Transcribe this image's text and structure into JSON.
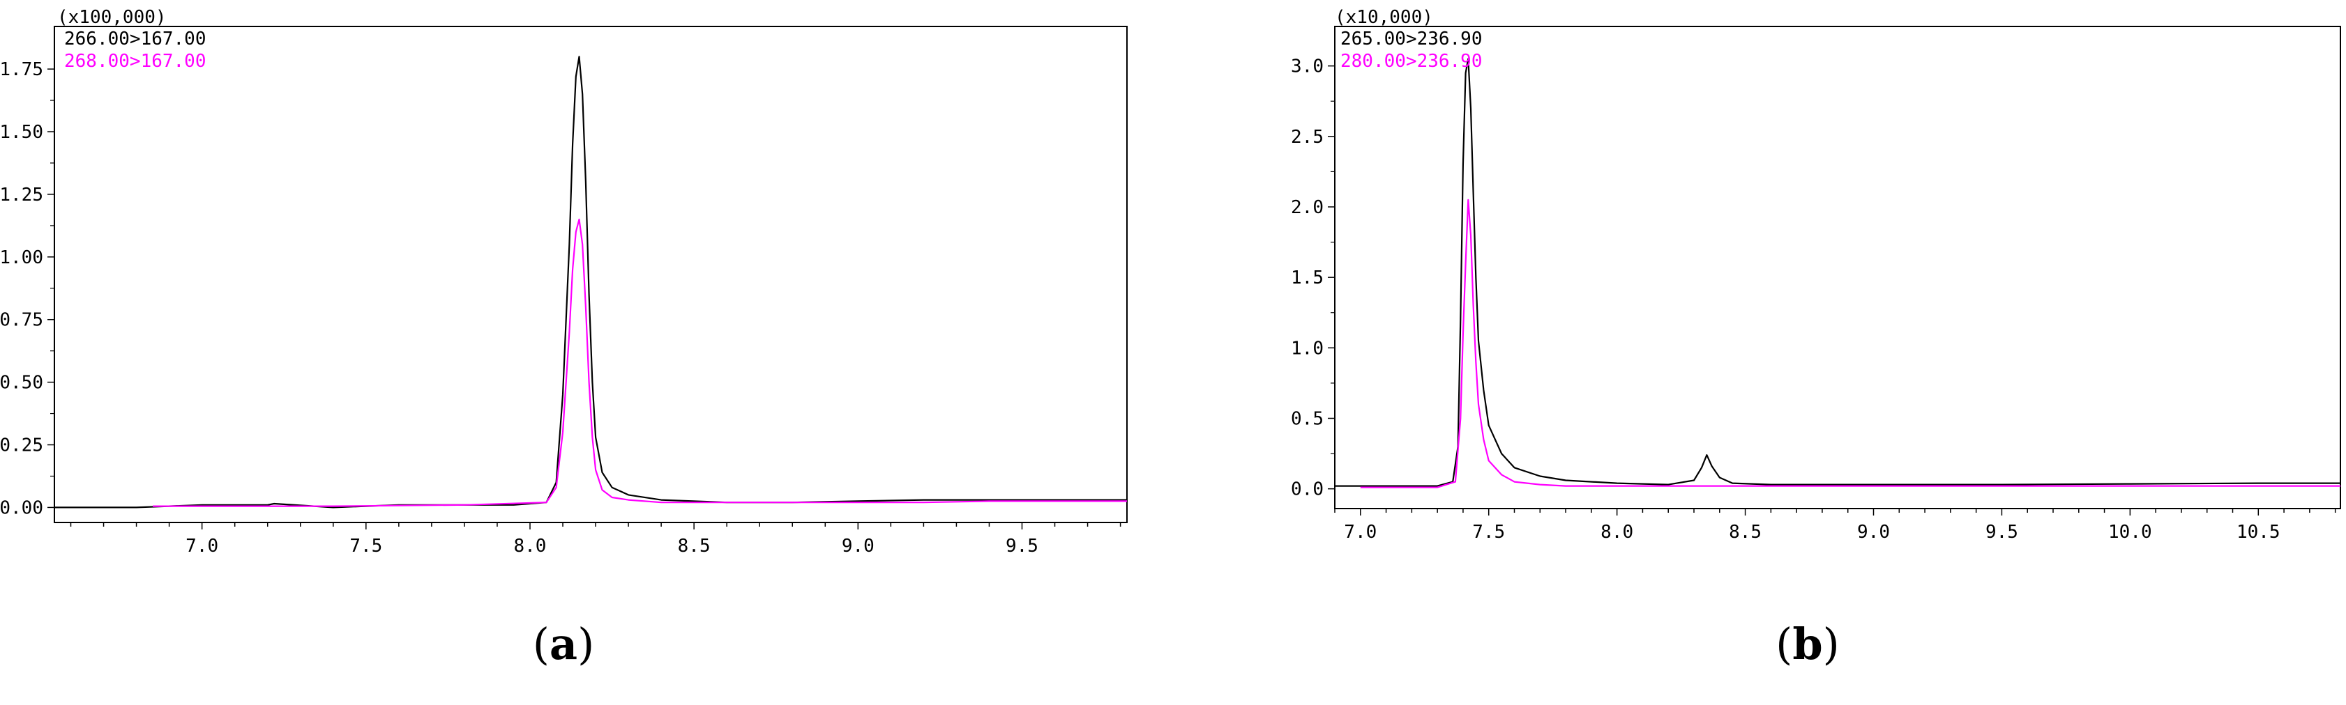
{
  "chart_data": [
    {
      "type": "line",
      "panel_label": "a",
      "y_multiplier": "(x100,000)",
      "xlim": [
        6.55,
        9.82
      ],
      "ylim": [
        -0.06,
        1.92
      ],
      "x_ticks": [
        "7.0",
        "7.5",
        "8.0",
        "8.5",
        "9.0",
        "9.5"
      ],
      "x_tick_values": [
        7.0,
        7.5,
        8.0,
        8.5,
        9.0,
        9.5
      ],
      "y_ticks": [
        "0.00",
        "0.25",
        "0.50",
        "0.75",
        "1.00",
        "1.25",
        "1.50",
        "1.75"
      ],
      "y_tick_values": [
        0.0,
        0.25,
        0.5,
        0.75,
        1.0,
        1.25,
        1.5,
        1.75
      ],
      "series": [
        {
          "name": "266.00>167.00",
          "color": "#000000",
          "x": [
            6.55,
            6.8,
            7.0,
            7.2,
            7.22,
            7.4,
            7.6,
            7.8,
            7.95,
            8.05,
            8.08,
            8.1,
            8.12,
            8.13,
            8.14,
            8.15,
            8.16,
            8.17,
            8.18,
            8.19,
            8.2,
            8.22,
            8.25,
            8.3,
            8.4,
            8.6,
            8.8,
            9.0,
            9.2,
            9.4,
            9.6,
            9.82
          ],
          "y": [
            0.0,
            0.0,
            0.01,
            0.01,
            0.015,
            0.0,
            0.01,
            0.01,
            0.01,
            0.02,
            0.1,
            0.45,
            1.05,
            1.45,
            1.72,
            1.8,
            1.65,
            1.3,
            0.85,
            0.5,
            0.28,
            0.14,
            0.08,
            0.05,
            0.03,
            0.02,
            0.02,
            0.025,
            0.03,
            0.03,
            0.03,
            0.03
          ]
        },
        {
          "name": "268.00>167.00",
          "color": "#ff00ff",
          "x": [
            6.85,
            7.0,
            7.4,
            7.8,
            8.05,
            8.08,
            8.1,
            8.12,
            8.13,
            8.14,
            8.15,
            8.16,
            8.17,
            8.18,
            8.19,
            8.2,
            8.22,
            8.25,
            8.3,
            8.4,
            8.6,
            8.8,
            9.0,
            9.2,
            9.4,
            9.6,
            9.82
          ],
          "y": [
            0.005,
            0.005,
            0.005,
            0.01,
            0.02,
            0.08,
            0.3,
            0.7,
            0.95,
            1.1,
            1.15,
            1.05,
            0.8,
            0.5,
            0.28,
            0.15,
            0.07,
            0.04,
            0.03,
            0.02,
            0.02,
            0.02,
            0.02,
            0.02,
            0.025,
            0.025,
            0.025
          ]
        }
      ]
    },
    {
      "type": "line",
      "panel_label": "b",
      "y_multiplier": "(x10,000)",
      "xlim": [
        6.9,
        10.82
      ],
      "ylim": [
        -0.14,
        3.28
      ],
      "x_ticks": [
        "7.0",
        "7.5",
        "8.0",
        "8.5",
        "9.0",
        "9.5",
        "10.0",
        "10.5"
      ],
      "x_tick_values": [
        7.0,
        7.5,
        8.0,
        8.5,
        9.0,
        9.5,
        10.0,
        10.5
      ],
      "y_ticks": [
        "0.0",
        "0.5",
        "1.0",
        "1.5",
        "2.0",
        "2.5",
        "3.0"
      ],
      "y_tick_values": [
        0.0,
        0.5,
        1.0,
        1.5,
        2.0,
        2.5,
        3.0
      ],
      "series": [
        {
          "name": "265.00>236.90",
          "color": "#000000",
          "x": [
            6.9,
            7.1,
            7.3,
            7.36,
            7.38,
            7.39,
            7.4,
            7.41,
            7.42,
            7.43,
            7.44,
            7.45,
            7.46,
            7.48,
            7.5,
            7.55,
            7.6,
            7.7,
            7.8,
            8.0,
            8.2,
            8.3,
            8.33,
            8.35,
            8.37,
            8.4,
            8.45,
            8.6,
            9.0,
            9.5,
            10.0,
            10.5,
            10.82
          ],
          "y": [
            0.02,
            0.02,
            0.02,
            0.05,
            0.3,
            1.2,
            2.3,
            2.95,
            3.05,
            2.7,
            2.1,
            1.5,
            1.05,
            0.7,
            0.45,
            0.25,
            0.15,
            0.09,
            0.06,
            0.04,
            0.03,
            0.06,
            0.15,
            0.24,
            0.16,
            0.08,
            0.04,
            0.03,
            0.03,
            0.03,
            0.035,
            0.04,
            0.04
          ]
        },
        {
          "name": "280.00>236.90",
          "color": "#ff00ff",
          "x": [
            7.0,
            7.3,
            7.37,
            7.39,
            7.4,
            7.41,
            7.42,
            7.43,
            7.44,
            7.45,
            7.46,
            7.48,
            7.5,
            7.55,
            7.6,
            7.7,
            7.8,
            8.0,
            8.5,
            9.0,
            9.5,
            10.0,
            10.5,
            10.82
          ],
          "y": [
            0.01,
            0.01,
            0.05,
            0.5,
            1.1,
            1.6,
            2.05,
            1.8,
            1.3,
            0.9,
            0.6,
            0.35,
            0.2,
            0.1,
            0.05,
            0.03,
            0.02,
            0.02,
            0.02,
            0.02,
            0.02,
            0.02,
            0.02,
            0.02
          ]
        }
      ]
    }
  ]
}
